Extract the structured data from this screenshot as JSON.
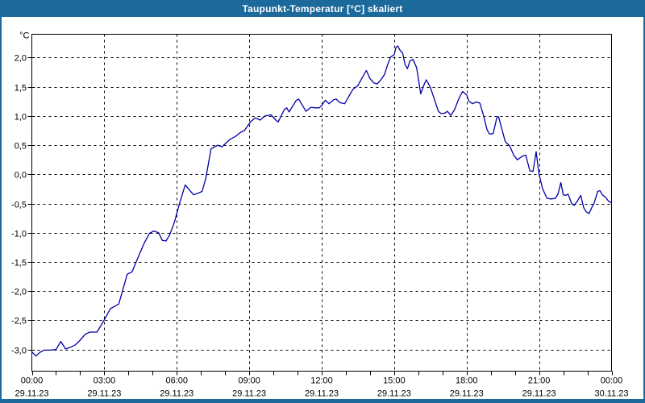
{
  "window": {
    "title": "Taupunkt-Temperatur [°C] skaliert"
  },
  "colors": {
    "titlebar": "#1c699c",
    "window_border": "#1c699c",
    "plot_background": "#ffffff",
    "grid": "#000000",
    "frame": "#000000",
    "line": "#0000a8",
    "title_text": "#ffffff",
    "axis_text": "#000000"
  },
  "chart_data": {
    "type": "line",
    "title": "Taupunkt-Temperatur [°C] skaliert",
    "ylabel": "°C",
    "xlabel": "",
    "ylim": [
      -3.37,
      2.4
    ],
    "xlim_hours": [
      0,
      24
    ],
    "grid": "dashed",
    "legend": "none",
    "y_ticks": [
      2.0,
      1.5,
      1.0,
      0.5,
      0.0,
      -0.5,
      -1.0,
      -1.5,
      -2.0,
      -2.5,
      -3.0
    ],
    "y_tick_labels": [
      "2,0",
      "1,5",
      "1,0",
      "0,5",
      "0,0",
      "-0,5",
      "-1,0",
      "-1,5",
      "-2,0",
      "-2,5",
      "-3,0"
    ],
    "x_major_ticks_hours": [
      0,
      3,
      6,
      9,
      12,
      15,
      18,
      21,
      24
    ],
    "x_tick_time_labels": [
      "00:00",
      "03:00",
      "06:00",
      "09:00",
      "12:00",
      "15:00",
      "18:00",
      "21:00",
      "00:00"
    ],
    "x_tick_date_labels": [
      "29.11.23",
      "29.11.23",
      "29.11.23",
      "29.11.23",
      "29.11.23",
      "29.11.23",
      "29.11.23",
      "29.11.23",
      "30.11.23"
    ],
    "x_minor_tick_step_hours": 1,
    "series": [
      {
        "name": "Taupunkt-Temperatur",
        "unit": "°C",
        "points": [
          [
            0.0,
            -3.04
          ],
          [
            0.17,
            -3.11
          ],
          [
            0.33,
            -3.05
          ],
          [
            0.5,
            -3.01
          ],
          [
            0.75,
            -3.01
          ],
          [
            1.0,
            -3.0
          ],
          [
            1.2,
            -2.86
          ],
          [
            1.4,
            -2.99
          ],
          [
            1.6,
            -2.96
          ],
          [
            1.8,
            -2.92
          ],
          [
            2.0,
            -2.84
          ],
          [
            2.2,
            -2.74
          ],
          [
            2.4,
            -2.7
          ],
          [
            2.7,
            -2.7
          ],
          [
            3.0,
            -2.49
          ],
          [
            3.25,
            -2.3
          ],
          [
            3.6,
            -2.22
          ],
          [
            3.95,
            -1.71
          ],
          [
            4.15,
            -1.67
          ],
          [
            4.4,
            -1.42
          ],
          [
            4.65,
            -1.18
          ],
          [
            4.87,
            -1.01
          ],
          [
            5.05,
            -0.97
          ],
          [
            5.25,
            -1.0
          ],
          [
            5.4,
            -1.13
          ],
          [
            5.55,
            -1.14
          ],
          [
            5.7,
            -1.04
          ],
          [
            5.9,
            -0.82
          ],
          [
            6.1,
            -0.52
          ],
          [
            6.35,
            -0.18
          ],
          [
            6.55,
            -0.28
          ],
          [
            6.7,
            -0.35
          ],
          [
            6.9,
            -0.32
          ],
          [
            7.05,
            -0.29
          ],
          [
            7.2,
            -0.07
          ],
          [
            7.42,
            0.44
          ],
          [
            7.7,
            0.5
          ],
          [
            7.87,
            0.47
          ],
          [
            7.97,
            0.51
          ],
          [
            8.2,
            0.6
          ],
          [
            8.43,
            0.65
          ],
          [
            8.64,
            0.72
          ],
          [
            8.8,
            0.75
          ],
          [
            9.05,
            0.9
          ],
          [
            9.25,
            0.97
          ],
          [
            9.45,
            0.93
          ],
          [
            9.65,
            1.0
          ],
          [
            9.9,
            1.02
          ],
          [
            10.1,
            0.93
          ],
          [
            10.2,
            0.9
          ],
          [
            10.45,
            1.11
          ],
          [
            10.55,
            1.14
          ],
          [
            10.65,
            1.07
          ],
          [
            10.95,
            1.27
          ],
          [
            11.05,
            1.29
          ],
          [
            11.25,
            1.15
          ],
          [
            11.35,
            1.08
          ],
          [
            11.55,
            1.15
          ],
          [
            11.75,
            1.14
          ],
          [
            11.9,
            1.14
          ],
          [
            12.0,
            1.18
          ],
          [
            12.15,
            1.27
          ],
          [
            12.3,
            1.21
          ],
          [
            12.5,
            1.28
          ],
          [
            12.6,
            1.29
          ],
          [
            12.75,
            1.23
          ],
          [
            12.95,
            1.21
          ],
          [
            13.1,
            1.32
          ],
          [
            13.3,
            1.46
          ],
          [
            13.5,
            1.52
          ],
          [
            13.67,
            1.65
          ],
          [
            13.85,
            1.78
          ],
          [
            14.0,
            1.64
          ],
          [
            14.15,
            1.57
          ],
          [
            14.3,
            1.55
          ],
          [
            14.45,
            1.62
          ],
          [
            14.6,
            1.71
          ],
          [
            14.73,
            1.88
          ],
          [
            14.85,
            2.01
          ],
          [
            15.0,
            2.05
          ],
          [
            15.08,
            2.18
          ],
          [
            15.15,
            2.2
          ],
          [
            15.25,
            2.12
          ],
          [
            15.35,
            2.08
          ],
          [
            15.45,
            1.88
          ],
          [
            15.55,
            1.81
          ],
          [
            15.65,
            1.94
          ],
          [
            15.78,
            1.97
          ],
          [
            15.93,
            1.83
          ],
          [
            16.02,
            1.6
          ],
          [
            16.1,
            1.38
          ],
          [
            16.25,
            1.55
          ],
          [
            16.33,
            1.62
          ],
          [
            16.5,
            1.49
          ],
          [
            16.67,
            1.28
          ],
          [
            16.83,
            1.08
          ],
          [
            16.95,
            1.04
          ],
          [
            17.1,
            1.05
          ],
          [
            17.2,
            1.08
          ],
          [
            17.35,
            1.01
          ],
          [
            17.5,
            1.11
          ],
          [
            17.67,
            1.29
          ],
          [
            17.83,
            1.42
          ],
          [
            17.92,
            1.39
          ],
          [
            18.0,
            1.36
          ],
          [
            18.1,
            1.25
          ],
          [
            18.25,
            1.21
          ],
          [
            18.4,
            1.24
          ],
          [
            18.55,
            1.22
          ],
          [
            18.7,
            1.01
          ],
          [
            18.85,
            0.76
          ],
          [
            18.95,
            0.69
          ],
          [
            19.1,
            0.7
          ],
          [
            19.25,
            0.97
          ],
          [
            19.32,
            0.99
          ],
          [
            19.45,
            0.79
          ],
          [
            19.6,
            0.56
          ],
          [
            19.78,
            0.49
          ],
          [
            19.95,
            0.33
          ],
          [
            20.1,
            0.25
          ],
          [
            20.3,
            0.31
          ],
          [
            20.45,
            0.33
          ],
          [
            20.62,
            0.06
          ],
          [
            20.75,
            0.05
          ],
          [
            20.88,
            0.39
          ],
          [
            21.0,
            0.0
          ],
          [
            21.15,
            -0.25
          ],
          [
            21.33,
            -0.41
          ],
          [
            21.5,
            -0.42
          ],
          [
            21.67,
            -0.41
          ],
          [
            21.78,
            -0.34
          ],
          [
            21.9,
            -0.14
          ],
          [
            22.0,
            -0.35
          ],
          [
            22.1,
            -0.36
          ],
          [
            22.2,
            -0.34
          ],
          [
            22.35,
            -0.5
          ],
          [
            22.45,
            -0.53
          ],
          [
            22.58,
            -0.46
          ],
          [
            22.72,
            -0.36
          ],
          [
            22.85,
            -0.57
          ],
          [
            22.95,
            -0.64
          ],
          [
            23.07,
            -0.67
          ],
          [
            23.18,
            -0.57
          ],
          [
            23.28,
            -0.49
          ],
          [
            23.43,
            -0.29
          ],
          [
            23.52,
            -0.28
          ],
          [
            23.62,
            -0.35
          ],
          [
            23.75,
            -0.39
          ],
          [
            23.88,
            -0.46
          ],
          [
            24.0,
            -0.49
          ]
        ]
      }
    ]
  }
}
